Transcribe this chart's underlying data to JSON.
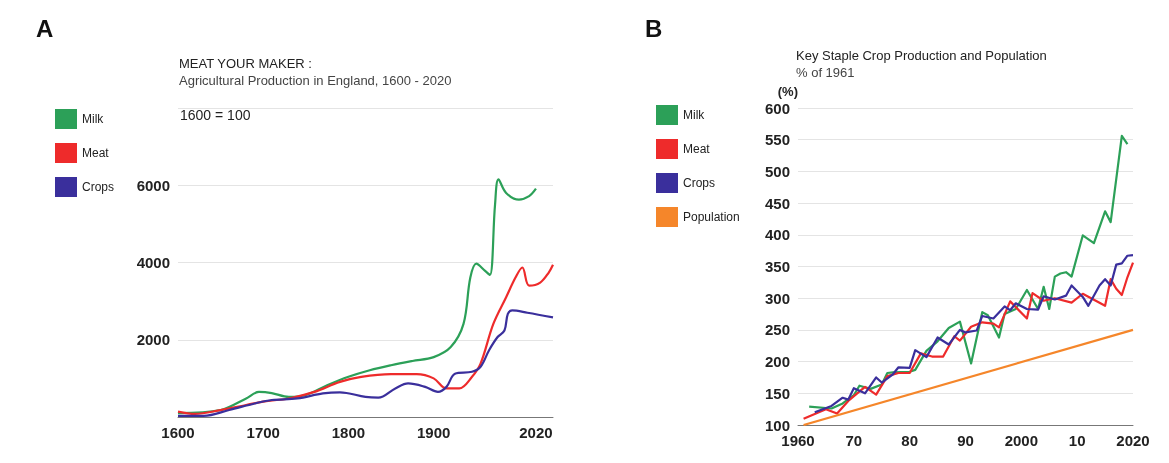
{
  "chart_data": [
    {
      "type": "line",
      "title": "MEAT YOUR MAKER :",
      "subtitle": "Agricultural Production in England, 1600 - 2020",
      "annotations": [
        "A",
        "1600 = 100"
      ],
      "xlim": [
        1600,
        2040
      ],
      "xticks": [
        1600,
        1700,
        1800,
        1900,
        {
          "value": 2020,
          "label": "2020"
        }
      ],
      "ylim": [
        0,
        8000
      ],
      "yticks": [
        {
          "value": 0,
          "label": null
        },
        2000,
        4000,
        6000,
        {
          "value": 8000,
          "label": null
        }
      ],
      "grid": "y",
      "legend": "left",
      "marker": "none",
      "series": [
        {
          "name": "Milk",
          "color": "#2ca058",
          "x": [
            1600,
            1650,
            1680,
            1695,
            1710,
            1730,
            1750,
            1775,
            1800,
            1825,
            1850,
            1875,
            1900,
            1920,
            1935,
            1943,
            1950,
            1960,
            1966,
            1972,
            1976,
            1985,
            2000,
            2012,
            2020
          ],
          "values": [
            100,
            180,
            480,
            650,
            620,
            520,
            570,
            820,
            1040,
            1210,
            1340,
            1450,
            1550,
            1810,
            2410,
            3610,
            3970,
            3790,
            3680,
            5500,
            6150,
            5800,
            5630,
            5720,
            5910
          ]
        },
        {
          "name": "Meat",
          "color": "#ee2b2b",
          "x": [
            1600,
            1620,
            1650,
            1680,
            1700,
            1730,
            1760,
            1790,
            1815,
            1850,
            1880,
            1900,
            1915,
            1930,
            1945,
            1955,
            1970,
            1985,
            1996,
            2004,
            2012,
            2025,
            2035,
            2040
          ],
          "values": [
            140,
            80,
            180,
            310,
            400,
            480,
            650,
            910,
            1040,
            1110,
            1110,
            1000,
            740,
            740,
            1040,
            1380,
            2410,
            3100,
            3610,
            3870,
            3400,
            3480,
            3740,
            3940
          ]
        },
        {
          "name": "Crops",
          "color": "#3a2f9c",
          "x": [
            1600,
            1630,
            1660,
            1690,
            1710,
            1740,
            1770,
            1790,
            1820,
            1835,
            1855,
            1870,
            1890,
            1905,
            1915,
            1925,
            1945,
            1955,
            1965,
            1975,
            1983,
            1987,
            1992,
            2010,
            2040
          ],
          "values": [
            30,
            30,
            180,
            350,
            440,
            480,
            610,
            640,
            520,
            500,
            740,
            870,
            780,
            650,
            780,
            1120,
            1170,
            1300,
            1730,
            2070,
            2240,
            2670,
            2760,
            2700,
            2580
          ]
        }
      ]
    },
    {
      "type": "line",
      "title": "Key Staple Crop Production and Population",
      "subtitle": "% of 1961",
      "ylabel": "(%)",
      "annotations": [
        "B"
      ],
      "xlim": [
        1960,
        2020
      ],
      "xticks": [
        1960,
        {
          "value": 1970,
          "label": "70"
        },
        {
          "value": 1980,
          "label": "80"
        },
        {
          "value": 1990,
          "label": "90"
        },
        2000,
        {
          "value": 2010,
          "label": "10"
        },
        2020
      ],
      "ylim": [
        100,
        600
      ],
      "yticks": [
        100,
        150,
        200,
        250,
        300,
        350,
        400,
        450,
        500,
        550,
        600
      ],
      "grid": "y",
      "legend": "left",
      "marker": "none",
      "series": [
        {
          "name": "Milk",
          "color": "#2ca058",
          "x": [
            1962,
            1966,
            1968,
            1970,
            1971,
            1973,
            1975,
            1976,
            1977,
            1980,
            1981,
            1983,
            1985,
            1987,
            1989,
            1991,
            1993,
            1994,
            1996,
            1997,
            1999,
            2001,
            2003,
            2004,
            2005,
            2006,
            2007,
            2008,
            2009,
            2011,
            2013,
            2015,
            2016,
            2018,
            2019
          ],
          "values": [
            129,
            126,
            134,
            147,
            162,
            157,
            164,
            182,
            183,
            184,
            187,
            217,
            232,
            253,
            263,
            197,
            278,
            273,
            238,
            275,
            283,
            313,
            283,
            318,
            283,
            334,
            339,
            341,
            334,
            399,
            387,
            437,
            420,
            556,
            543
          ]
        },
        {
          "name": "Meat",
          "color": "#ee2b2b",
          "x": [
            1961,
            1965,
            1967,
            1969,
            1972,
            1974,
            1976,
            1978,
            1980,
            1982,
            1984,
            1986,
            1988,
            1989,
            1991,
            1993,
            1995,
            1996,
            1998,
            2001,
            2002,
            2004,
            2006,
            2009,
            2011,
            2015,
            2016,
            2017,
            2018,
            2019,
            2020
          ],
          "values": [
            110,
            125,
            118,
            138,
            160,
            148,
            177,
            182,
            182,
            213,
            208,
            208,
            240,
            233,
            255,
            262,
            260,
            254,
            295,
            268,
            308,
            296,
            300,
            293,
            307,
            288,
            330,
            315,
            305,
            333,
            356
          ]
        },
        {
          "name": "Crops",
          "color": "#3a2f9c",
          "x": [
            1963,
            1966,
            1968,
            1969,
            1970,
            1972,
            1974,
            1975,
            1977,
            1978,
            1980,
            1981,
            1983,
            1985,
            1987,
            1989,
            1990,
            1992,
            1993,
            1995,
            1997,
            1998,
            1999,
            2001,
            2003,
            2004,
            2006,
            2008,
            2009,
            2011,
            2012,
            2014,
            2015,
            2016,
            2017,
            2018,
            2019,
            2020
          ],
          "values": [
            120,
            130,
            143,
            140,
            158,
            150,
            175,
            167,
            180,
            191,
            190,
            218,
            207,
            238,
            227,
            250,
            246,
            249,
            272,
            268,
            287,
            281,
            292,
            283,
            282,
            303,
            298,
            304,
            320,
            302,
            288,
            320,
            330,
            320,
            353,
            355,
            367,
            368
          ]
        },
        {
          "name": "Population",
          "color": "#f5862a",
          "x": [
            1961,
            2020
          ],
          "values": [
            100,
            250
          ]
        }
      ]
    }
  ]
}
